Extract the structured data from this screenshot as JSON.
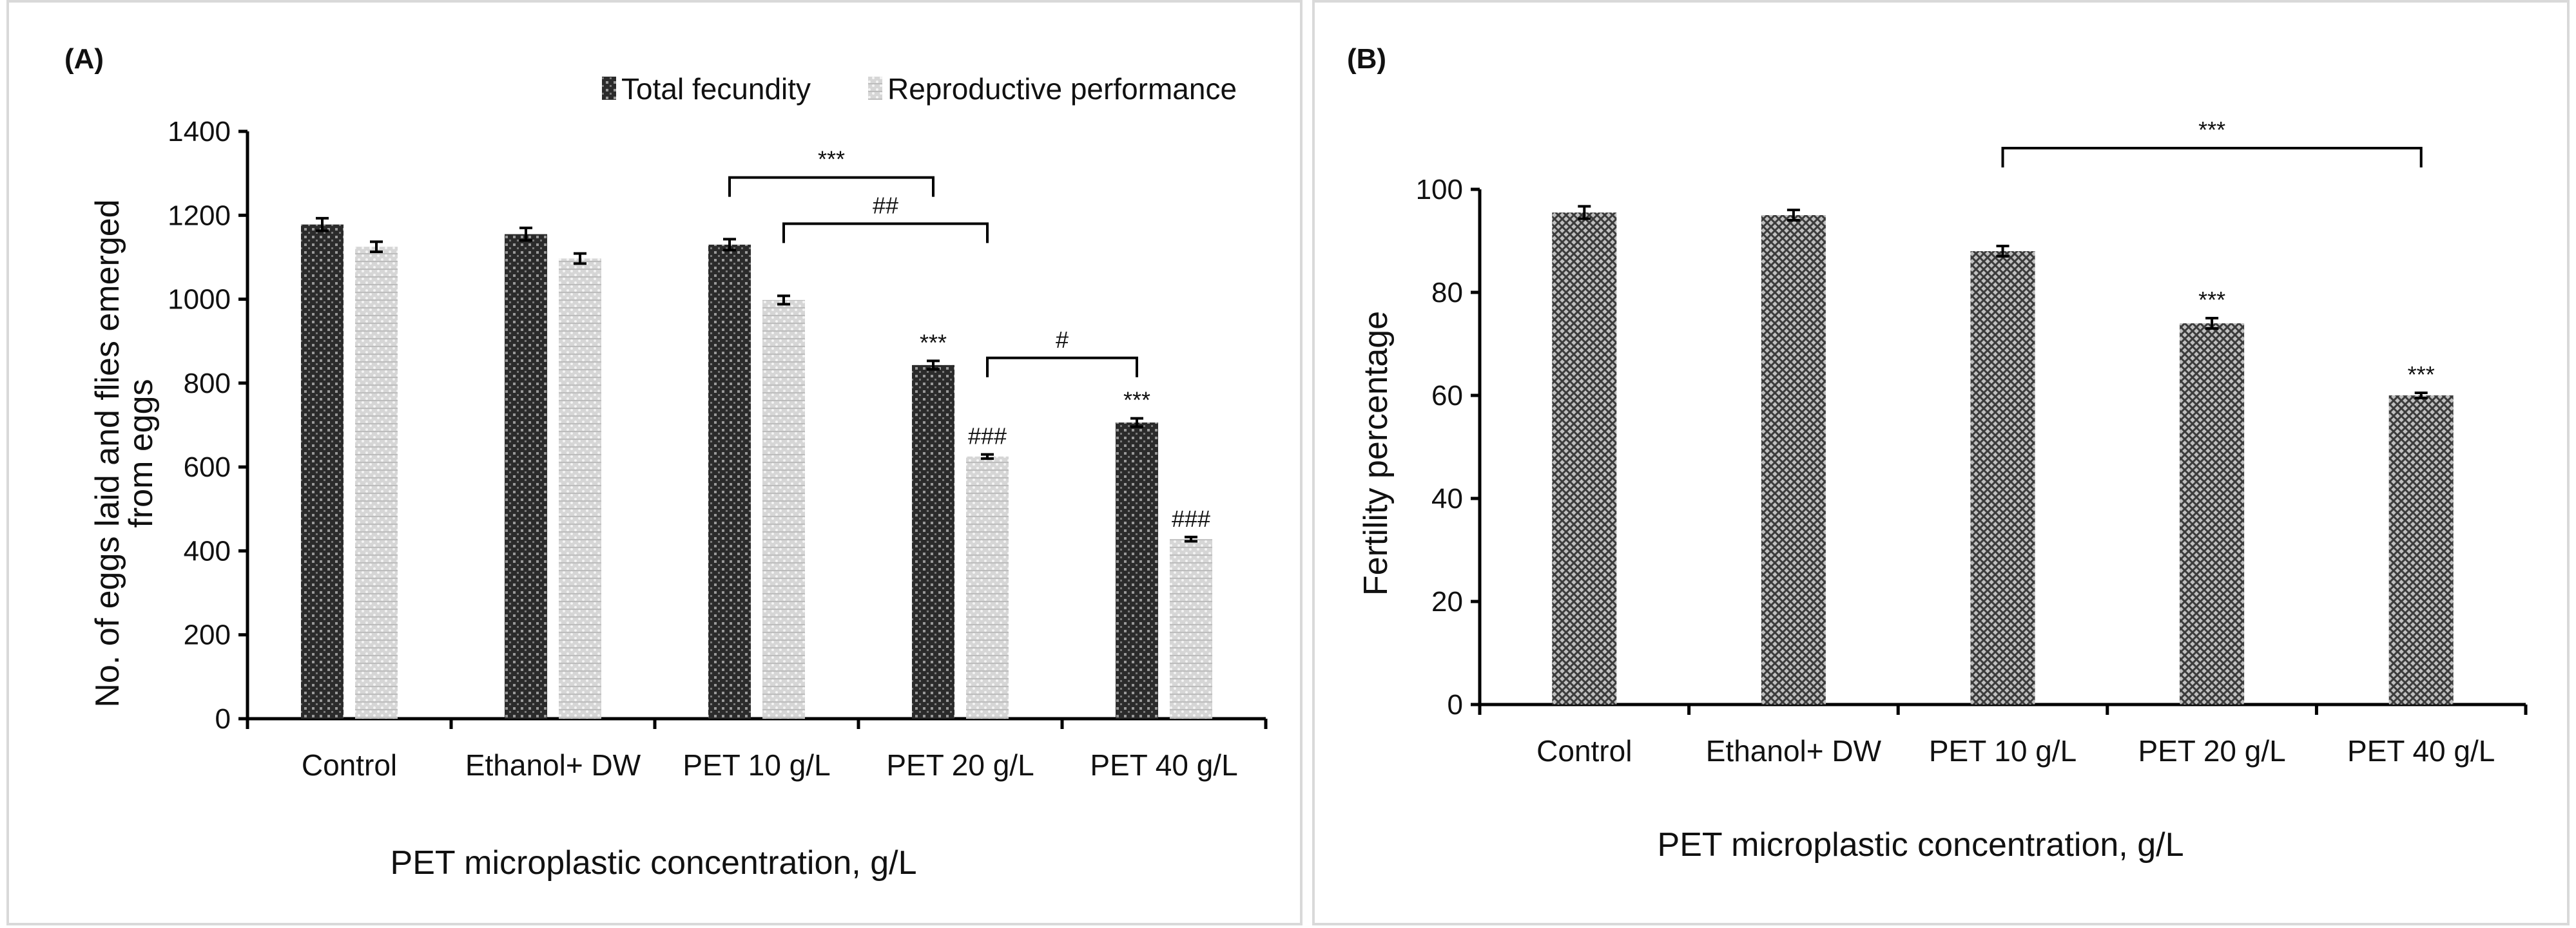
{
  "colors": {
    "total_fecundity": "#3a3a3a",
    "reproductive_performance": "#c8c8c8",
    "fertility": "#454545",
    "axis": "#000000"
  },
  "chart_data": [
    {
      "type": "bar",
      "panel_label": "(A)",
      "title": "",
      "xlabel": "PET microplastic concentration, g/L",
      "ylabel": "No. of eggs laid and flies emerged from eggs",
      "ylabel_lines": [
        "No. of eggs laid and flies emerged",
        "from eggs"
      ],
      "categories": [
        "Control",
        "Ethanol+ DW",
        "PET 10 g/L",
        "PET 20 g/L",
        "PET 40 g/L"
      ],
      "series": [
        {
          "name": "Total fecundity",
          "values": [
            1178,
            1155,
            1130,
            843,
            706
          ],
          "errors": [
            15,
            15,
            13,
            10,
            10
          ]
        },
        {
          "name": "Reproductive performance",
          "values": [
            1125,
            1097,
            998,
            625,
            428
          ],
          "errors": [
            12,
            12,
            10,
            5,
            5
          ]
        }
      ],
      "ylim": [
        0,
        1400
      ],
      "yticks": [
        0,
        200,
        400,
        600,
        800,
        1000,
        1200,
        1400
      ],
      "legend_position": "top-right",
      "bar_annotations": [
        {
          "category": 3,
          "series": 0,
          "text": "***"
        },
        {
          "category": 3,
          "series": 1,
          "text": "###"
        },
        {
          "category": 4,
          "series": 0,
          "text": "***"
        },
        {
          "category": 4,
          "series": 1,
          "text": "###"
        }
      ],
      "brackets": [
        {
          "from": {
            "category": 2,
            "series": 0
          },
          "to": {
            "category": 3,
            "series": 0
          },
          "level": 1290,
          "text": "***"
        },
        {
          "from": {
            "category": 2,
            "series": 1
          },
          "to": {
            "category": 3,
            "series": 1
          },
          "level": 1180,
          "text": "##"
        },
        {
          "from": {
            "category": 3,
            "series": 1
          },
          "to": {
            "category": 4,
            "series": 0
          },
          "level": 860,
          "text": "#"
        }
      ]
    },
    {
      "type": "bar",
      "panel_label": "(B)",
      "title": "",
      "xlabel": "PET microplastic concentration, g/L",
      "ylabel": "Fertility percentage",
      "categories": [
        "Control",
        "Ethanol+ DW",
        "PET 10 g/L",
        "PET 20 g/L",
        "PET 40 g/L"
      ],
      "series": [
        {
          "name": "Fertility percentage",
          "values": [
            95.5,
            95,
            88,
            74,
            60
          ],
          "errors": [
            1.2,
            1,
            1,
            1,
            0.5
          ]
        }
      ],
      "ylim": [
        0,
        100
      ],
      "yticks": [
        0,
        20,
        40,
        60,
        80,
        100
      ],
      "bar_annotations": [
        {
          "category": 3,
          "series": 0,
          "text": "***"
        },
        {
          "category": 4,
          "series": 0,
          "text": "***"
        }
      ],
      "brackets": [
        {
          "from": {
            "category": 2,
            "series": 0
          },
          "to": {
            "category": 4,
            "series": 0
          },
          "level": 108,
          "text": "***"
        }
      ]
    }
  ]
}
